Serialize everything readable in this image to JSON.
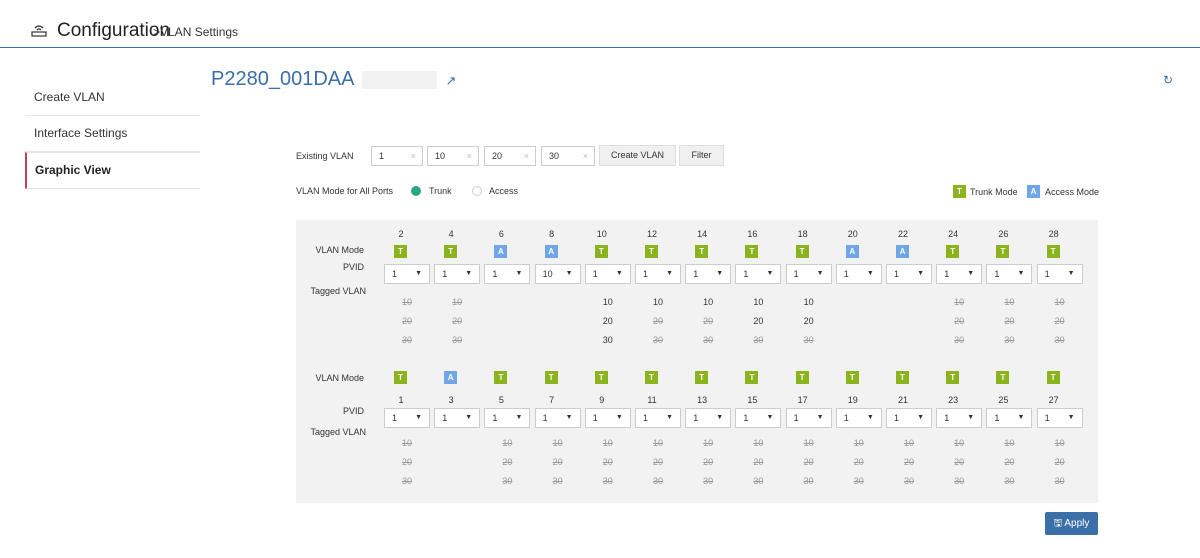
{
  "header": {
    "title": "Configuration",
    "breadcrumb": ">VLAN Settings",
    "icon": "router-icon"
  },
  "sidebar": {
    "items": [
      {
        "label": "Create VLAN"
      },
      {
        "label": "Interface Settings"
      },
      {
        "label": "Graphic View"
      }
    ]
  },
  "device": {
    "name": "P2280_001DAA"
  },
  "existing": {
    "label": "Existing VLAN",
    "values": [
      "1",
      "10",
      "20",
      "30"
    ],
    "create_label": "Create VLAN",
    "filter_label": "Filter"
  },
  "mode_all": {
    "label": "VLAN Mode for All Ports",
    "trunk": "Trunk",
    "access": "Access",
    "selected": "Trunk"
  },
  "legend": {
    "trunk_letter": "T",
    "trunk_label": "Trunk Mode",
    "access_letter": "A",
    "access_label": "Access Mode"
  },
  "colors": {
    "trunk": "#8bb31d",
    "access": "#6ea6e8",
    "accent": "#3a6fa8",
    "selected_radio": "#2aa68a"
  },
  "labels": {
    "vlan_mode": "VLAN Mode",
    "pvid": "PVID",
    "tagged_vlan": "Tagged VLAN"
  },
  "top_ports": [
    {
      "port": "2",
      "mode": "T",
      "pvid": "1",
      "tags": [
        {
          "v": "10",
          "on": false
        },
        {
          "v": "20",
          "on": false
        },
        {
          "v": "30",
          "on": false
        }
      ]
    },
    {
      "port": "4",
      "mode": "T",
      "pvid": "1",
      "tags": [
        {
          "v": "10",
          "on": false
        },
        {
          "v": "20",
          "on": false
        },
        {
          "v": "30",
          "on": false
        }
      ]
    },
    {
      "port": "6",
      "mode": "A",
      "pvid": "1",
      "tags": []
    },
    {
      "port": "8",
      "mode": "A",
      "pvid": "10",
      "tags": []
    },
    {
      "port": "10",
      "mode": "T",
      "pvid": "1",
      "tags": [
        {
          "v": "10",
          "on": true
        },
        {
          "v": "20",
          "on": true
        },
        {
          "v": "30",
          "on": true
        }
      ]
    },
    {
      "port": "12",
      "mode": "T",
      "pvid": "1",
      "tags": [
        {
          "v": "10",
          "on": true
        },
        {
          "v": "20",
          "on": false
        },
        {
          "v": "30",
          "on": false
        }
      ]
    },
    {
      "port": "14",
      "mode": "T",
      "pvid": "1",
      "tags": [
        {
          "v": "10",
          "on": true
        },
        {
          "v": "20",
          "on": false
        },
        {
          "v": "30",
          "on": false
        }
      ]
    },
    {
      "port": "16",
      "mode": "T",
      "pvid": "1",
      "tags": [
        {
          "v": "10",
          "on": true
        },
        {
          "v": "20",
          "on": true
        },
        {
          "v": "30",
          "on": false
        }
      ]
    },
    {
      "port": "18",
      "mode": "T",
      "pvid": "1",
      "tags": [
        {
          "v": "10",
          "on": true
        },
        {
          "v": "20",
          "on": true
        },
        {
          "v": "30",
          "on": false
        }
      ]
    },
    {
      "port": "20",
      "mode": "A",
      "pvid": "1",
      "tags": []
    },
    {
      "port": "22",
      "mode": "A",
      "pvid": "1",
      "tags": []
    },
    {
      "port": "24",
      "mode": "T",
      "pvid": "1",
      "tags": [
        {
          "v": "10",
          "on": false
        },
        {
          "v": "20",
          "on": false
        },
        {
          "v": "30",
          "on": false
        }
      ]
    },
    {
      "port": "26",
      "mode": "T",
      "pvid": "1",
      "tags": [
        {
          "v": "10",
          "on": false
        },
        {
          "v": "20",
          "on": false
        },
        {
          "v": "30",
          "on": false
        }
      ]
    },
    {
      "port": "28",
      "mode": "T",
      "pvid": "1",
      "tags": [
        {
          "v": "10",
          "on": false
        },
        {
          "v": "20",
          "on": false
        },
        {
          "v": "30",
          "on": false
        }
      ]
    }
  ],
  "bottom_ports": [
    {
      "port": "1",
      "mode": "T",
      "pvid": "1",
      "tags": [
        {
          "v": "10",
          "on": false
        },
        {
          "v": "20",
          "on": false
        },
        {
          "v": "30",
          "on": false
        }
      ]
    },
    {
      "port": "3",
      "mode": "A",
      "pvid": "1",
      "tags": []
    },
    {
      "port": "5",
      "mode": "T",
      "pvid": "1",
      "tags": [
        {
          "v": "10",
          "on": false
        },
        {
          "v": "20",
          "on": false
        },
        {
          "v": "30",
          "on": false
        }
      ]
    },
    {
      "port": "7",
      "mode": "T",
      "pvid": "1",
      "tags": [
        {
          "v": "10",
          "on": false
        },
        {
          "v": "20",
          "on": false
        },
        {
          "v": "30",
          "on": false
        }
      ]
    },
    {
      "port": "9",
      "mode": "T",
      "pvid": "1",
      "tags": [
        {
          "v": "10",
          "on": false
        },
        {
          "v": "20",
          "on": false
        },
        {
          "v": "30",
          "on": false
        }
      ]
    },
    {
      "port": "11",
      "mode": "T",
      "pvid": "1",
      "tags": [
        {
          "v": "10",
          "on": false
        },
        {
          "v": "20",
          "on": false
        },
        {
          "v": "30",
          "on": false
        }
      ]
    },
    {
      "port": "13",
      "mode": "T",
      "pvid": "1",
      "tags": [
        {
          "v": "10",
          "on": false
        },
        {
          "v": "20",
          "on": false
        },
        {
          "v": "30",
          "on": false
        }
      ]
    },
    {
      "port": "15",
      "mode": "T",
      "pvid": "1",
      "tags": [
        {
          "v": "10",
          "on": false
        },
        {
          "v": "20",
          "on": false
        },
        {
          "v": "30",
          "on": false
        }
      ]
    },
    {
      "port": "17",
      "mode": "T",
      "pvid": "1",
      "tags": [
        {
          "v": "10",
          "on": false
        },
        {
          "v": "20",
          "on": false
        },
        {
          "v": "30",
          "on": false
        }
      ]
    },
    {
      "port": "19",
      "mode": "T",
      "pvid": "1",
      "tags": [
        {
          "v": "10",
          "on": false
        },
        {
          "v": "20",
          "on": false
        },
        {
          "v": "30",
          "on": false
        }
      ]
    },
    {
      "port": "21",
      "mode": "T",
      "pvid": "1",
      "tags": [
        {
          "v": "10",
          "on": false
        },
        {
          "v": "20",
          "on": false
        },
        {
          "v": "30",
          "on": false
        }
      ]
    },
    {
      "port": "23",
      "mode": "T",
      "pvid": "1",
      "tags": [
        {
          "v": "10",
          "on": false
        },
        {
          "v": "20",
          "on": false
        },
        {
          "v": "30",
          "on": false
        }
      ]
    },
    {
      "port": "25",
      "mode": "T",
      "pvid": "1",
      "tags": [
        {
          "v": "10",
          "on": false
        },
        {
          "v": "20",
          "on": false
        },
        {
          "v": "30",
          "on": false
        }
      ]
    },
    {
      "port": "27",
      "mode": "T",
      "pvid": "1",
      "tags": [
        {
          "v": "10",
          "on": false
        },
        {
          "v": "20",
          "on": false
        },
        {
          "v": "30",
          "on": false
        }
      ]
    }
  ],
  "apply_label": "Apply"
}
